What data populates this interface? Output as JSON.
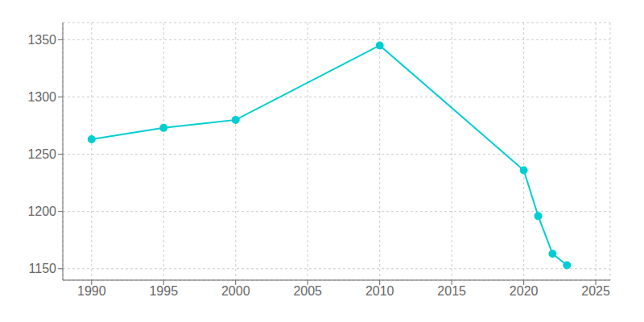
{
  "chart_data": {
    "type": "line",
    "x": [
      1990,
      1995,
      2000,
      2010,
      2020,
      2021,
      2022,
      2023
    ],
    "values": [
      1263,
      1273,
      1280,
      1345,
      1236,
      1196,
      1163,
      1153
    ],
    "color": "#00CED1",
    "marker": "circle",
    "xlim": [
      1988,
      2026
    ],
    "ylim": [
      1140,
      1365
    ],
    "xticks": [
      1990,
      1995,
      2000,
      2005,
      2010,
      2015,
      2020,
      2025
    ],
    "yticks": [
      1150,
      1200,
      1250,
      1300,
      1350
    ],
    "grid": true
  }
}
